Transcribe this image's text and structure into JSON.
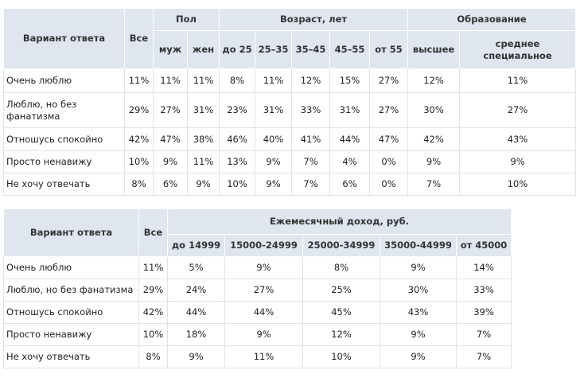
{
  "table1": {
    "header": {
      "answer": "Вариант ответа",
      "all": "Все",
      "groups": [
        {
          "title": "Пол",
          "columns": [
            "муж",
            "жен"
          ]
        },
        {
          "title": "Возраст, лет",
          "columns": [
            "до 25",
            "25–35",
            "35–45",
            "45–55",
            "от 55"
          ]
        },
        {
          "title": "Образование",
          "columns": [
            "высшее",
            "среднее специальное"
          ]
        }
      ]
    },
    "rows": [
      [
        "Очень люблю",
        "11%",
        "11%",
        "11%",
        "8%",
        "11%",
        "12%",
        "15%",
        "27%",
        "12%",
        "11%"
      ],
      [
        "Люблю, но без фанатизма",
        "29%",
        "27%",
        "31%",
        "23%",
        "31%",
        "33%",
        "31%",
        "27%",
        "30%",
        "27%"
      ],
      [
        "Отношусь спокойно",
        "42%",
        "47%",
        "38%",
        "46%",
        "40%",
        "41%",
        "44%",
        "47%",
        "42%",
        "43%"
      ],
      [
        "Просто ненавижу",
        "10%",
        "9%",
        "11%",
        "13%",
        "9%",
        "7%",
        "4%",
        "0%",
        "9%",
        "9%"
      ],
      [
        "Не хочу отвечать",
        "8%",
        "6%",
        "9%",
        "10%",
        "9%",
        "7%",
        "6%",
        "0%",
        "7%",
        "10%"
      ]
    ]
  },
  "table2": {
    "header": {
      "answer": "Вариант ответа",
      "all": "Все",
      "groups": [
        {
          "title": "Ежемесячный доход, руб.",
          "columns": [
            "до 14999",
            "15000-24999",
            "25000-34999",
            "35000-44999",
            "от 45000"
          ]
        }
      ]
    },
    "rows": [
      [
        "Очень люблю",
        "11%",
        "5%",
        "9%",
        "8%",
        "9%",
        "14%"
      ],
      [
        "Люблю, но без фанатизма",
        "29%",
        "24%",
        "27%",
        "25%",
        "30%",
        "33%"
      ],
      [
        "Отношусь спокойно",
        "42%",
        "44%",
        "44%",
        "45%",
        "43%",
        "39%"
      ],
      [
        "Просто ненавижу",
        "10%",
        "18%",
        "9%",
        "12%",
        "9%",
        "7%"
      ],
      [
        "Не хочу отвечать",
        "8%",
        "9%",
        "11%",
        "10%",
        "9%",
        "7%"
      ]
    ]
  }
}
